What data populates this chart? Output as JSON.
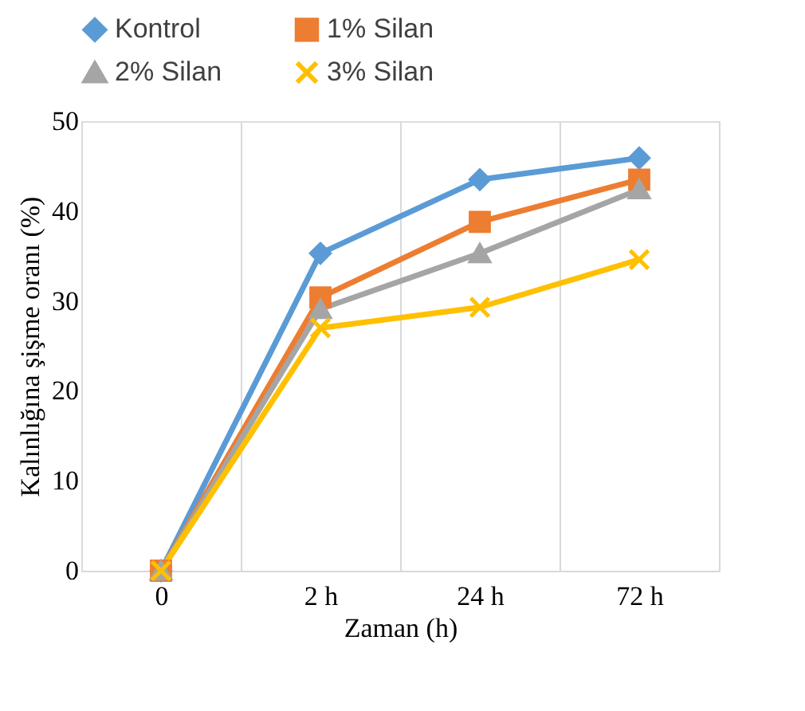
{
  "chart_data": {
    "type": "line",
    "xlabel": "Zaman (h)",
    "ylabel": "Kalınlığına şişme oranı (%)",
    "categories": [
      "0",
      "2  h",
      "24  h",
      "72  h"
    ],
    "series": [
      {
        "name": "Kontrol",
        "color": "#5b9bd5",
        "marker": "diamond",
        "values": [
          0,
          35.3,
          43.5,
          45.9
        ]
      },
      {
        "name": "1% Silan",
        "color": "#ed7d31",
        "marker": "square",
        "values": [
          0,
          30.4,
          38.8,
          43.5
        ]
      },
      {
        "name": "2% Silan",
        "color": "#a5a5a5",
        "marker": "triangle",
        "values": [
          0,
          29.1,
          35.3,
          42.4
        ]
      },
      {
        "name": "3% Silan",
        "color": "#ffc000",
        "marker": "cross",
        "values": [
          0,
          27,
          29.3,
          34.6
        ]
      }
    ],
    "ylim": [
      0,
      50
    ],
    "yticks": [
      0,
      10,
      20,
      30,
      40,
      50
    ],
    "grid": "x",
    "legend": "top",
    "line_style": "solid"
  }
}
